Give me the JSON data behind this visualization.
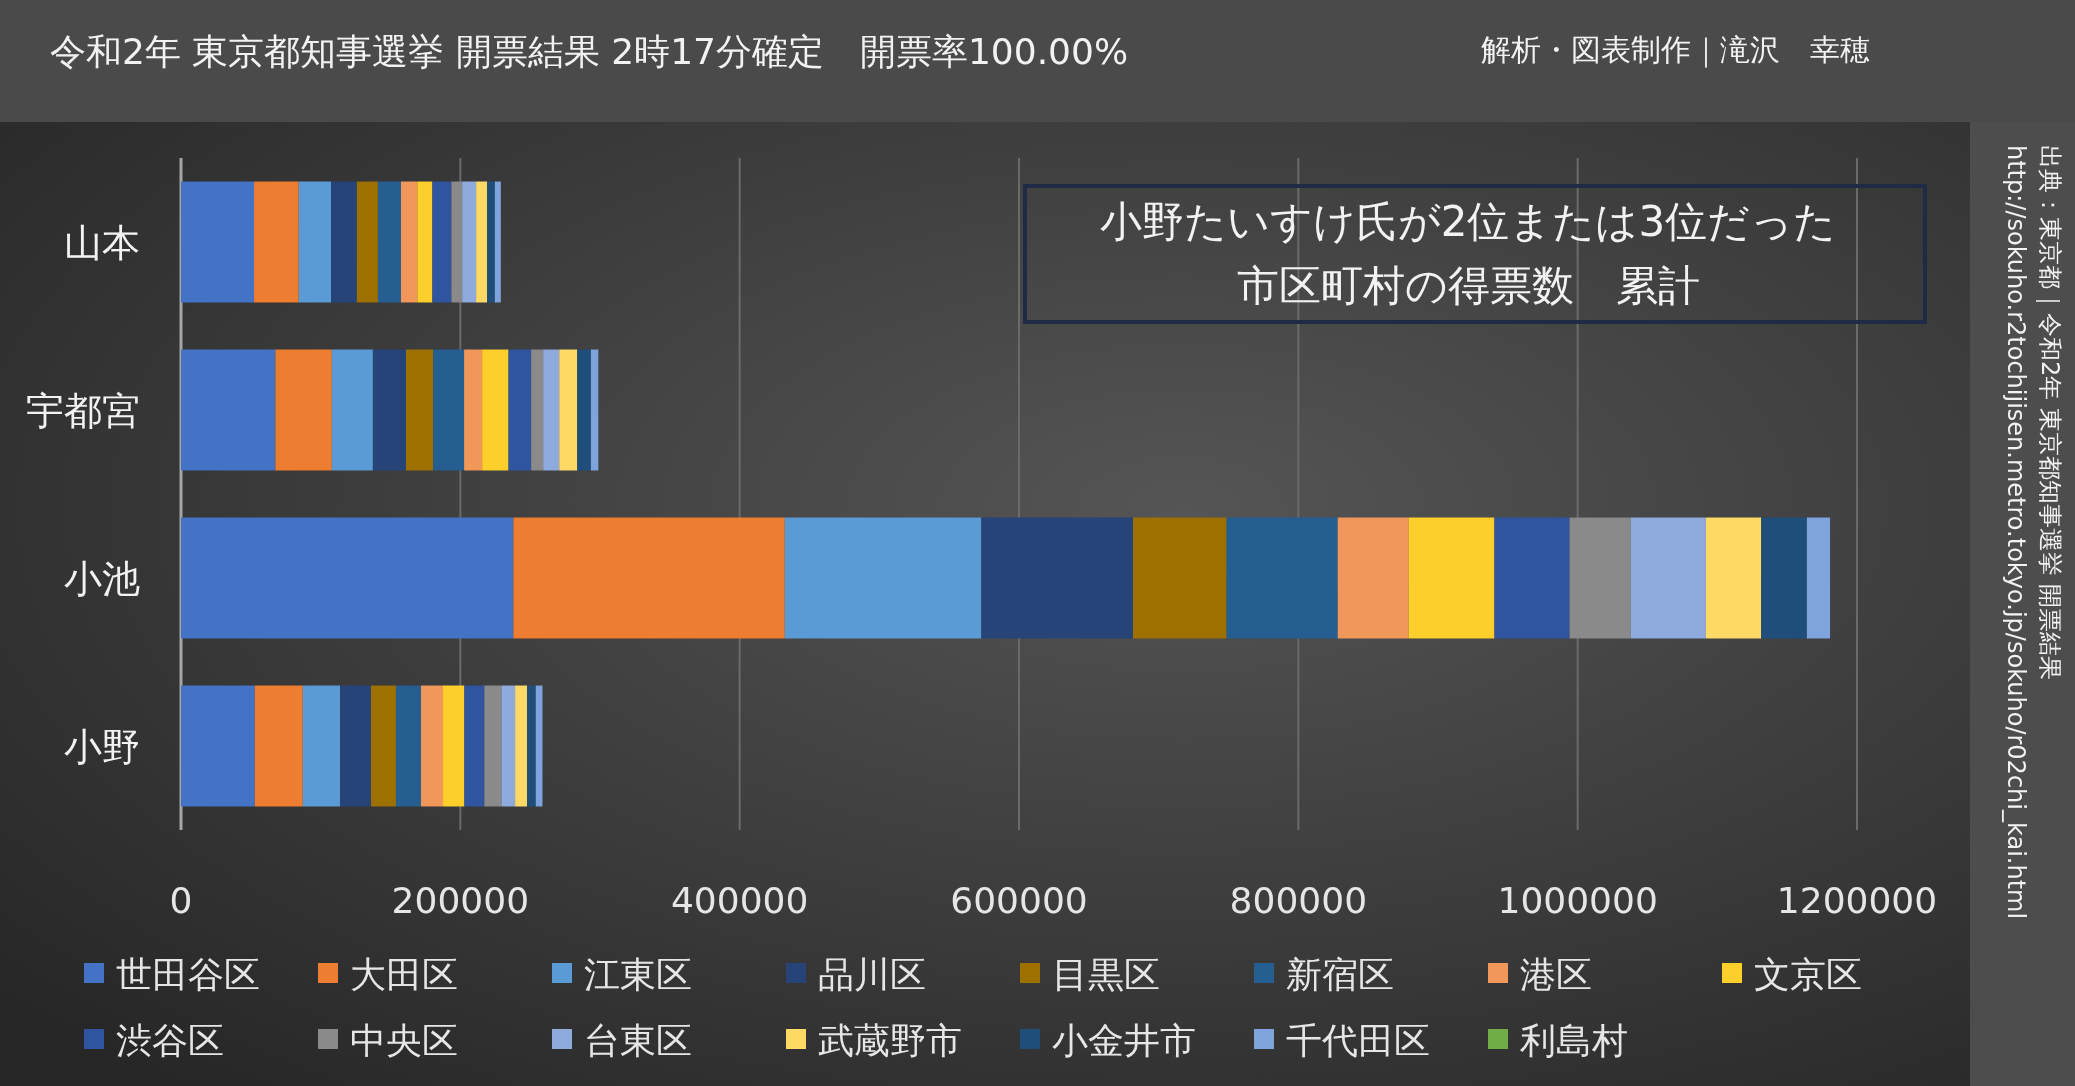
{
  "chart_data": {
    "type": "bar",
    "orientation": "horizontal",
    "stacked": true,
    "title": "令和2年 東京都知事選挙 開票結果 2時17分確定　開票率100.00%",
    "categories": [
      "山本",
      "宇都宮",
      "小池",
      "小野"
    ],
    "series": [
      {
        "name": "世田谷区",
        "color": "#4472c4",
        "values": [
          52300,
          67600,
          238000,
          52800
        ]
      },
      {
        "name": "大田区",
        "color": "#ed7d31",
        "values": [
          32000,
          40400,
          194300,
          34400
        ]
      },
      {
        "name": "江東区",
        "color": "#5b9bd5",
        "values": [
          23200,
          29400,
          140700,
          26800
        ]
      },
      {
        "name": "品川区",
        "color": "#264478",
        "values": [
          18400,
          23700,
          108600,
          22000
        ]
      },
      {
        "name": "目黒区",
        "color": "#9e7000",
        "values": [
          15100,
          19400,
          67000,
          17900
        ]
      },
      {
        "name": "新宿区",
        "color": "#255e91",
        "values": [
          16500,
          22200,
          79600,
          17900
        ]
      },
      {
        "name": "港区",
        "color": "#f1975a",
        "values": [
          11700,
          12900,
          50700,
          15800
        ]
      },
      {
        "name": "文京区",
        "color": "#fdcf2b",
        "values": [
          10800,
          18900,
          61500,
          15300
        ]
      },
      {
        "name": "渋谷区",
        "color": "#2f55a0",
        "values": [
          13600,
          16200,
          53800,
          14300
        ]
      },
      {
        "name": "中央区",
        "color": "#8a8a8a",
        "values": [
          7700,
          8600,
          43800,
          12200
        ]
      },
      {
        "name": "台東区",
        "color": "#8faadc",
        "values": [
          10000,
          11500,
          53800,
          9800
        ]
      },
      {
        "name": "武蔵野市",
        "color": "#ffd966",
        "values": [
          7900,
          12900,
          39600,
          8600
        ]
      },
      {
        "name": "小金井市",
        "color": "#1e4e79",
        "values": [
          5500,
          9800,
          32700,
          6200
        ]
      },
      {
        "name": "千代田区",
        "color": "#7fa3dc",
        "values": [
          4300,
          5300,
          16600,
          4800
        ]
      },
      {
        "name": "利島村",
        "color": "#70ad47",
        "values": [
          null,
          null,
          null,
          null
        ]
      }
    ],
    "xlim": [
      0,
      1200000
    ],
    "xticks": [
      0,
      200000,
      400000,
      600000,
      800000,
      1000000,
      1200000
    ],
    "grid": "x",
    "legend": "bottom",
    "annotations": [
      "小野たいすけ氏が2位または3位だった",
      "市区町村の得票数　累計",
      "解析・図表制作｜滝沢　幸穂",
      "出典：東京都｜令和2年 東京都知事選挙 開票結果",
      "http://sokuho.r2tochijisen.metro.tokyo.jp/sokuho/r02chi_kai.html"
    ]
  }
}
